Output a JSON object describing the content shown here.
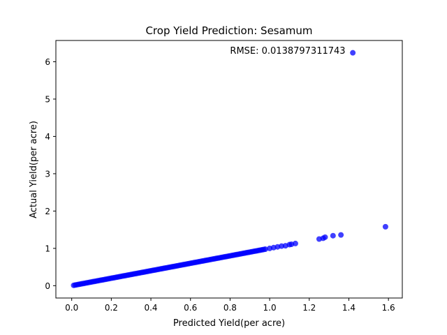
{
  "chart_data": {
    "type": "scatter",
    "title": "Crop Yield Prediction: Sesamum",
    "xlabel": "Predicted Yield(per acre)",
    "ylabel": "Actual Yield(per acre)",
    "annotation": "RMSE: 0.0138797311743",
    "annotation_pos": [
      0.8,
      6.25
    ],
    "xlim": [
      -0.08,
      1.67
    ],
    "ylim": [
      -0.33,
      6.57
    ],
    "xticks": [
      0.0,
      0.2,
      0.4,
      0.6,
      0.8,
      1.0,
      1.2,
      1.4,
      1.6
    ],
    "xtick_labels": [
      "0.0",
      "0.2",
      "0.4",
      "0.6",
      "0.8",
      "1.0",
      "1.2",
      "1.4",
      "1.6"
    ],
    "yticks": [
      0,
      1,
      2,
      3,
      4,
      5,
      6
    ],
    "ytick_labels": [
      "0",
      "1",
      "2",
      "3",
      "4",
      "5",
      "6"
    ],
    "grid": false,
    "marker_color": "#0000ff",
    "marker_alpha": 0.75,
    "dense_band": {
      "x_start": 0.01,
      "x_end": 0.98,
      "step": 0.008
    },
    "points": [
      {
        "x": 1.0,
        "y": 1.0
      },
      {
        "x": 1.02,
        "y": 1.02
      },
      {
        "x": 1.04,
        "y": 1.04
      },
      {
        "x": 1.06,
        "y": 1.06
      },
      {
        "x": 1.08,
        "y": 1.07
      },
      {
        "x": 1.1,
        "y": 1.1
      },
      {
        "x": 1.11,
        "y": 1.11
      },
      {
        "x": 1.13,
        "y": 1.13
      },
      {
        "x": 1.25,
        "y": 1.25
      },
      {
        "x": 1.27,
        "y": 1.27
      },
      {
        "x": 1.28,
        "y": 1.3
      },
      {
        "x": 1.32,
        "y": 1.34
      },
      {
        "x": 1.36,
        "y": 1.36
      },
      {
        "x": 1.585,
        "y": 1.58
      },
      {
        "x": 1.42,
        "y": 6.24
      }
    ]
  }
}
